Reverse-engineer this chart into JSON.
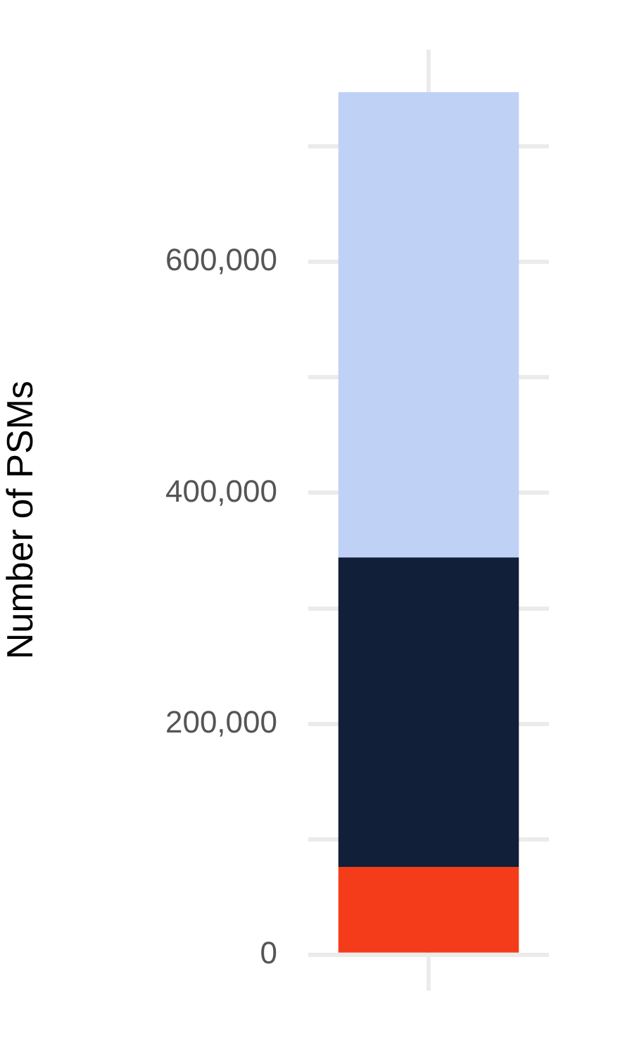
{
  "chart_data": {
    "type": "bar",
    "ylabel": "Number of PSMs",
    "categories": [
      null
    ],
    "stacked": true,
    "series": [
      {
        "color": "#f43c1a",
        "values": [
          76000
        ]
      },
      {
        "color": "#111f38",
        "values": [
          268000
        ]
      },
      {
        "color": "#c0d1f6",
        "values": [
          403000
        ]
      }
    ],
    "ylim": [
      -31000,
      784000
    ],
    "yticks": [
      0,
      {
        "value": 100000,
        "label": null
      },
      {
        "value": 200000,
        "label": "200,000"
      },
      {
        "value": 300000,
        "label": null
      },
      {
        "value": 400000,
        "label": "400,000"
      },
      {
        "value": 500000,
        "label": null
      },
      {
        "value": 600000,
        "label": "600,000"
      },
      {
        "value": 700000,
        "label": null
      }
    ],
    "grid": true,
    "tick_labels": "y"
  }
}
